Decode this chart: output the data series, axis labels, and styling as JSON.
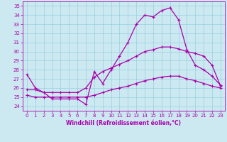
{
  "xlabel": "Windchill (Refroidissement éolien,°C)",
  "bg_color": "#cce8f0",
  "line_color": "#aa00aa",
  "xlim": [
    -0.5,
    23.5
  ],
  "ylim": [
    23.5,
    35.5
  ],
  "xticks": [
    0,
    1,
    2,
    3,
    4,
    5,
    6,
    7,
    8,
    9,
    10,
    11,
    12,
    13,
    14,
    15,
    16,
    17,
    18,
    19,
    20,
    21,
    22,
    23
  ],
  "yticks": [
    24,
    25,
    26,
    27,
    28,
    29,
    30,
    31,
    32,
    33,
    34,
    35
  ],
  "curve1_x": [
    0,
    1,
    2,
    3,
    4,
    5,
    6,
    7,
    8,
    9,
    10,
    11,
    12,
    13,
    14,
    15,
    16,
    17,
    18,
    19,
    20,
    21,
    22,
    23
  ],
  "curve1_y": [
    27.5,
    26.0,
    25.5,
    24.8,
    24.8,
    24.8,
    24.8,
    24.2,
    27.8,
    26.5,
    28.0,
    29.5,
    31.0,
    33.0,
    34.0,
    33.8,
    34.5,
    34.8,
    33.5,
    30.2,
    28.5,
    28.0,
    27.3,
    26.3
  ],
  "curve2_x": [
    0,
    1,
    2,
    3,
    4,
    5,
    6,
    7,
    8,
    9,
    10,
    11,
    12,
    13,
    14,
    15,
    16,
    17,
    18,
    19,
    20,
    21,
    22,
    23
  ],
  "curve2_y": [
    25.8,
    25.8,
    25.5,
    25.5,
    25.5,
    25.5,
    25.5,
    26.0,
    27.2,
    27.8,
    28.2,
    28.6,
    29.0,
    29.5,
    30.0,
    30.2,
    30.5,
    30.5,
    30.3,
    30.0,
    29.8,
    29.5,
    28.5,
    26.2
  ],
  "curve3_x": [
    0,
    1,
    2,
    3,
    4,
    5,
    6,
    7,
    8,
    9,
    10,
    11,
    12,
    13,
    14,
    15,
    16,
    17,
    18,
    19,
    20,
    21,
    22,
    23
  ],
  "curve3_y": [
    25.2,
    25.0,
    25.0,
    25.0,
    25.0,
    25.0,
    25.0,
    25.0,
    25.2,
    25.5,
    25.8,
    26.0,
    26.2,
    26.5,
    26.8,
    27.0,
    27.2,
    27.3,
    27.3,
    27.0,
    26.8,
    26.5,
    26.2,
    26.0
  ],
  "xlabel_fontsize": 5.5,
  "tick_fontsize": 5,
  "marker_size": 2.5,
  "lw": 0.9
}
